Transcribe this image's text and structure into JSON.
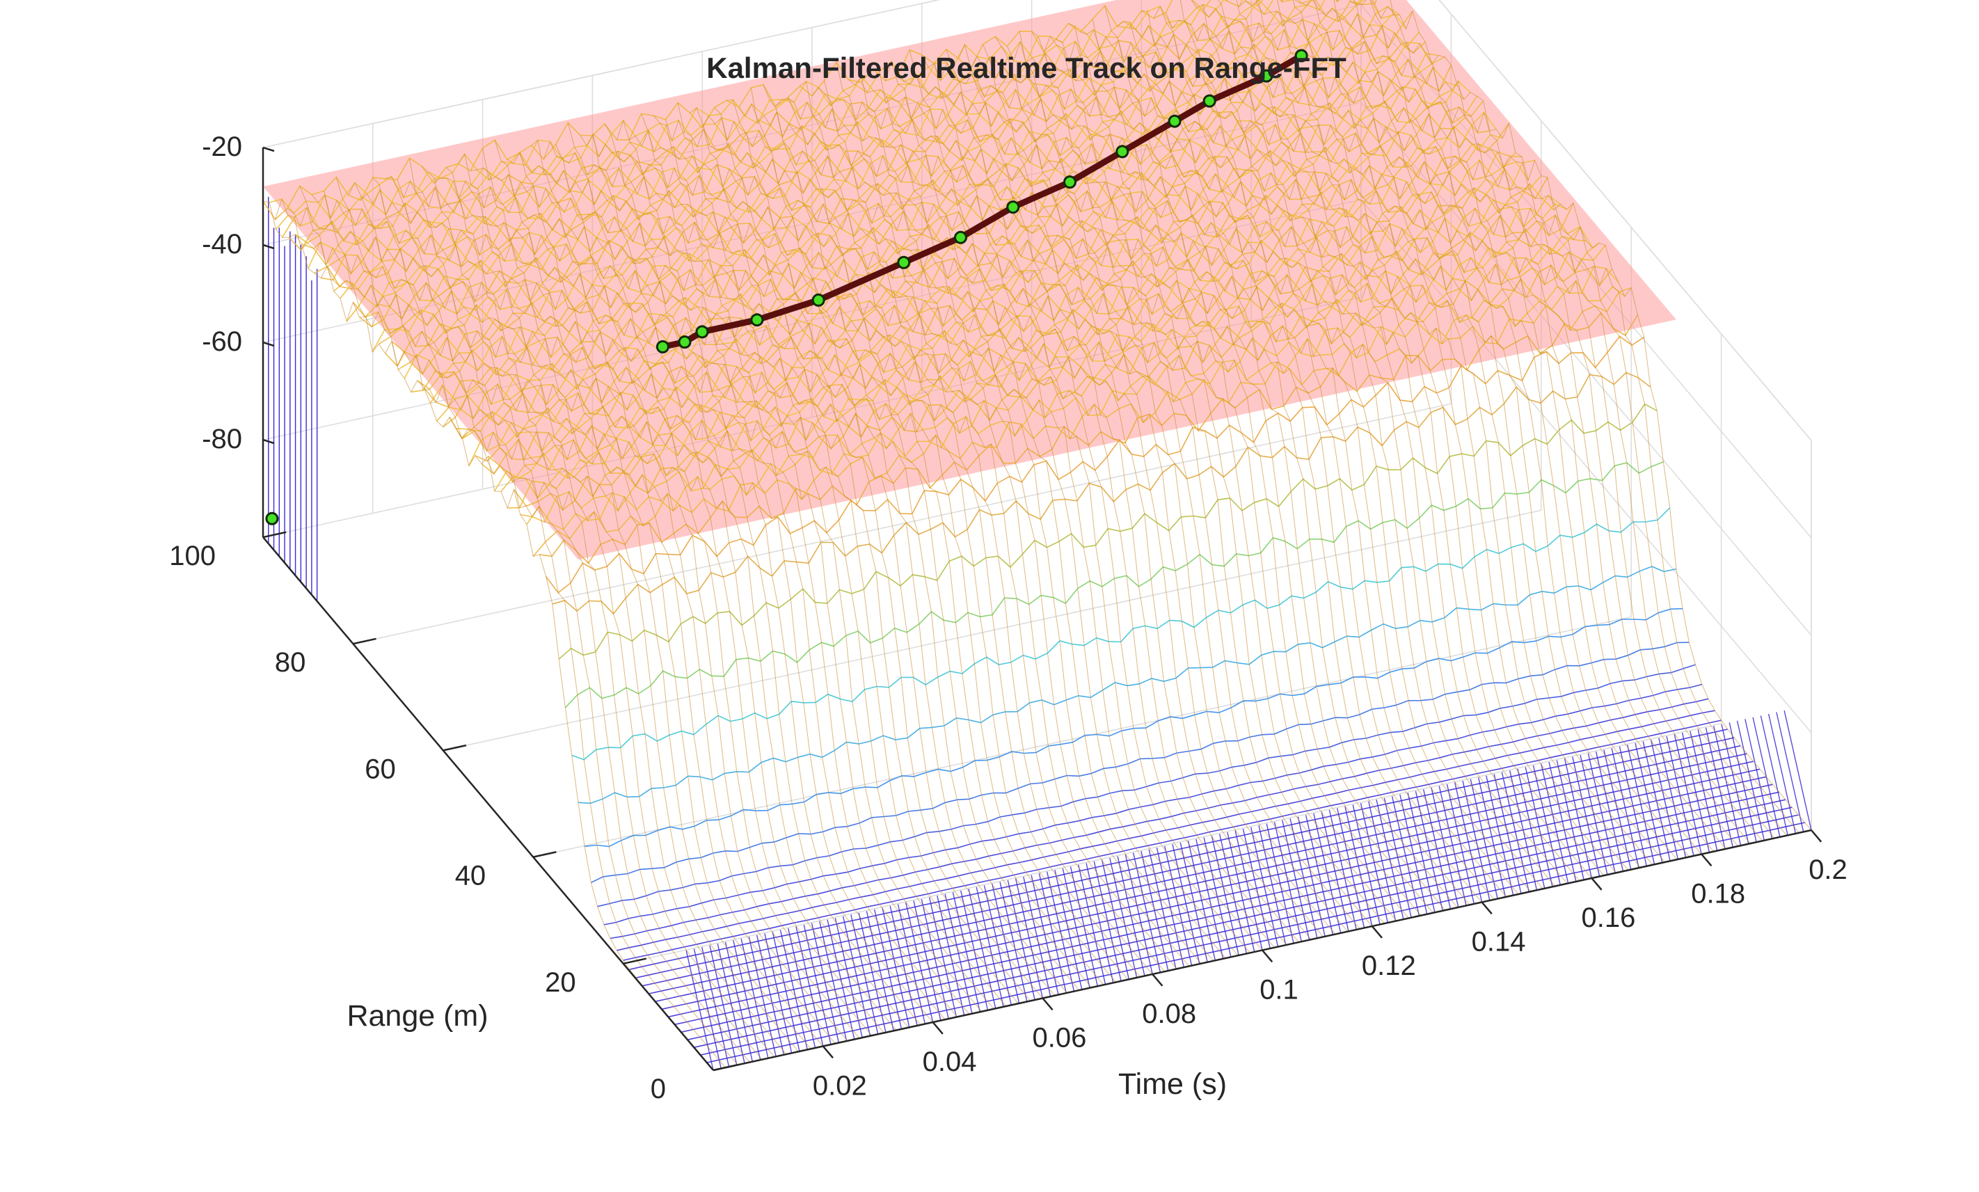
{
  "chart_data": {
    "type": "surface",
    "title": "Kalman-Filtered Realtime Track on Range-FFT",
    "xlabel": "Time (s)",
    "ylabel": "Range (m)",
    "zlabel": "",
    "xlim": [
      0,
      0.2
    ],
    "ylim": [
      0,
      100
    ],
    "zlim": [
      -100,
      -20
    ],
    "x_ticks": [
      "0.02",
      "0.04",
      "0.06",
      "0.08",
      "0.1",
      "0.12",
      "0.14",
      "0.16",
      "0.18",
      "0.2"
    ],
    "y_ticks": [
      "0",
      "20",
      "40",
      "60",
      "80",
      "100"
    ],
    "z_ticks": [
      "-20",
      "-40",
      "-60",
      "-80"
    ],
    "grid": true,
    "surface": {
      "style": "mesh",
      "colormap": [
        "#3b2bd6",
        "#2f8cf0",
        "#39c7d8",
        "#8fd04a",
        "#e9a23b",
        "#f2c43c"
      ],
      "near_range_level_db": -100,
      "plateau_level_db": -28
    },
    "threshold_plane": {
      "level_db": -28,
      "color": "#ff9a9a"
    },
    "kalman_track": {
      "color": "#5a0f0f",
      "marker_color": "#46e025",
      "points": [
        {
          "t": 0.0,
          "r": 98
        },
        {
          "t": 0.04,
          "r": 60
        },
        {
          "t": 0.044,
          "r": 60
        },
        {
          "t": 0.048,
          "r": 61
        },
        {
          "t": 0.058,
          "r": 61
        },
        {
          "t": 0.07,
          "r": 62
        },
        {
          "t": 0.088,
          "r": 65
        },
        {
          "t": 0.1,
          "r": 67
        },
        {
          "t": 0.112,
          "r": 70
        },
        {
          "t": 0.124,
          "r": 72
        },
        {
          "t": 0.136,
          "r": 75
        },
        {
          "t": 0.148,
          "r": 78
        },
        {
          "t": 0.156,
          "r": 80
        },
        {
          "t": 0.168,
          "r": 82
        },
        {
          "t": 0.176,
          "r": 84
        }
      ]
    }
  }
}
